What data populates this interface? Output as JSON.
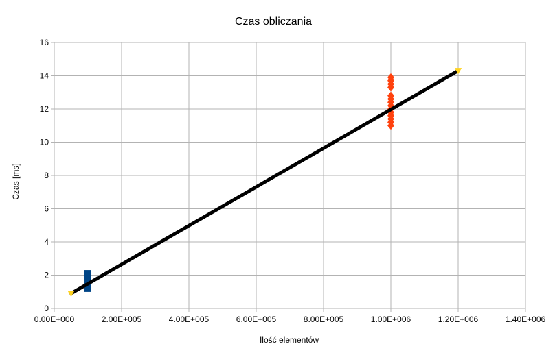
{
  "chart_data": {
    "type": "scatter",
    "title": "Czas obliczania",
    "xlabel": "Ilość elementów",
    "ylabel": "Czas [ms]",
    "xlim": [
      0,
      1400000
    ],
    "ylim": [
      0,
      16
    ],
    "x_ticks": [
      0,
      200000,
      400000,
      600000,
      800000,
      1000000,
      1200000,
      1400000
    ],
    "x_tick_labels": [
      "0.00E+000",
      "2.00E+005",
      "4.00E+005",
      "6.00E+005",
      "8.00E+005",
      "1.00E+006",
      "1.20E+006",
      "1.40E+006"
    ],
    "y_ticks": [
      0,
      2,
      4,
      6,
      8,
      10,
      12,
      14,
      16
    ],
    "y_tick_labels": [
      "0",
      "2",
      "4",
      "6",
      "8",
      "10",
      "12",
      "14",
      "16"
    ],
    "grid": true,
    "legend": "none",
    "series": [
      {
        "marker": "square",
        "color": "#004586",
        "x": [
          100000,
          100000,
          100000,
          100000,
          100000,
          100000,
          100000,
          100000
        ],
        "y": [
          1.2,
          1.3,
          1.4,
          1.5,
          1.6,
          1.7,
          1.9,
          2.1
        ]
      },
      {
        "marker": "diamond",
        "color": "#ff420e",
        "x": [
          1000000,
          1000000,
          1000000,
          1000000,
          1000000,
          1000000,
          1000000,
          1000000,
          1000000,
          1000000,
          1000000,
          1000000,
          1000000,
          1000000
        ],
        "y": [
          11.0,
          11.2,
          11.4,
          11.6,
          11.8,
          12.0,
          12.2,
          12.4,
          12.6,
          12.8,
          13.3,
          13.5,
          13.7,
          13.9
        ]
      },
      {
        "marker": "triangle",
        "color": "#ffd320",
        "x": [
          50000,
          1200000
        ],
        "y": [
          0.9,
          14.3
        ]
      }
    ],
    "trendline": {
      "color": "#000000",
      "x": [
        50000,
        1200000
      ],
      "y": [
        0.9,
        14.3
      ]
    }
  }
}
